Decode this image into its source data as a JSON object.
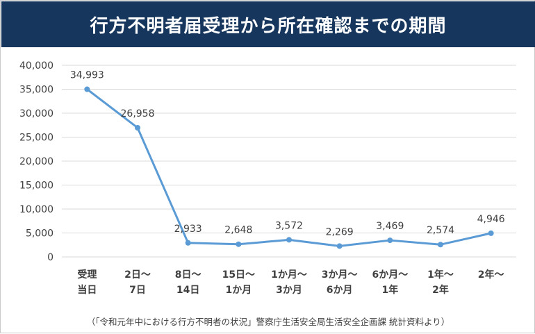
{
  "chart_data": {
    "type": "line",
    "title": "行方不明者届受理から所在確認までの期間",
    "categories": [
      [
        "受理",
        "当日"
      ],
      [
        "2日～",
        "7日"
      ],
      [
        "8日～",
        "14日"
      ],
      [
        "15日～",
        "1か月"
      ],
      [
        "1か月～",
        "3か月"
      ],
      [
        "3か月～",
        "6か月"
      ],
      [
        "6か月～",
        "1年"
      ],
      [
        "1年～",
        "2年"
      ],
      [
        "2年～"
      ]
    ],
    "values": [
      34993,
      26958,
      2933,
      2648,
      3572,
      2269,
      3469,
      2574,
      4946
    ],
    "value_labels": [
      "34,993",
      "26,958",
      "2,933",
      "2,648",
      "3,572",
      "2,269",
      "3,469",
      "2,574",
      "4,946"
    ],
    "yticks": [
      "0",
      "5,000",
      "10,000",
      "15,000",
      "20,000",
      "25,000",
      "30,000",
      "35,000",
      "40,000"
    ],
    "ylim": [
      0,
      40000
    ],
    "grid": true,
    "legend": "none",
    "line_color": "#5b9bd5",
    "source": "（「令和元年中における行方不明者の状況」警察庁生活安全局生活安全企画課 統計資料より）"
  },
  "colors": {
    "title_background": "#17365d",
    "title_text": "#ffffff",
    "gridline": "#d9d9d9",
    "tick_text": "#404040"
  }
}
